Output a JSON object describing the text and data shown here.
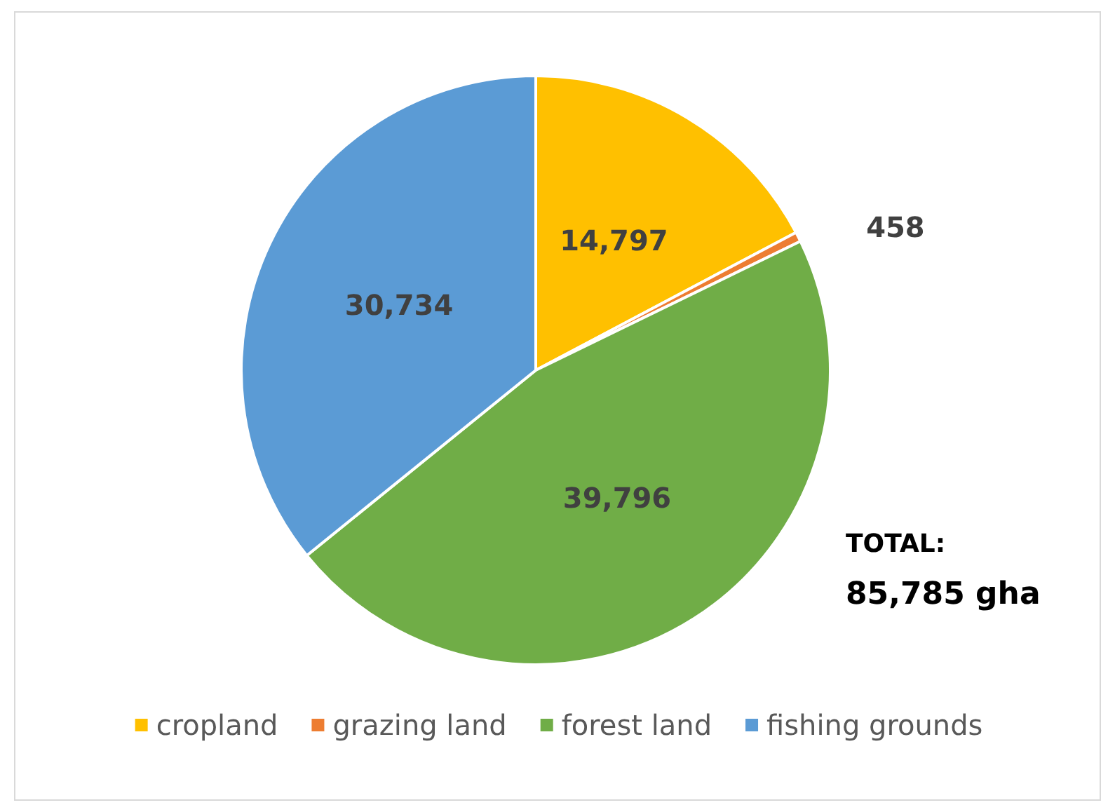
{
  "chart_data": {
    "type": "pie",
    "categories": [
      "cropland",
      "grazing land",
      "forest land",
      "fishing grounds"
    ],
    "values": [
      14797,
      458,
      39796,
      30734
    ],
    "colors": [
      "#ffc000",
      "#ed7d31",
      "#70ad47",
      "#5b9bd5"
    ],
    "value_labels": [
      "14,797",
      "458",
      "39,796",
      "30,734"
    ],
    "legend": "bottom",
    "annotations": [
      "TOTAL:",
      "85,785 gha"
    ]
  }
}
